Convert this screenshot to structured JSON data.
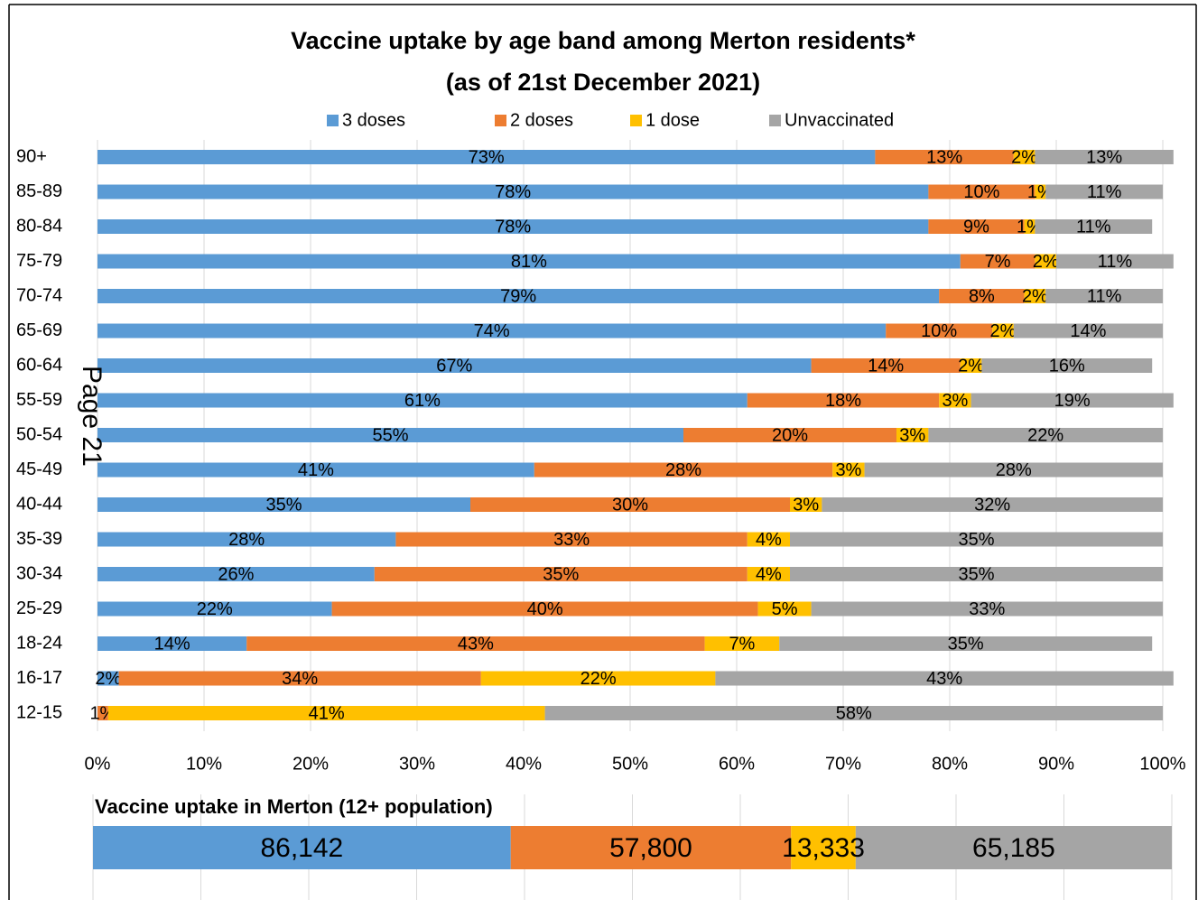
{
  "page_label": "Page 21",
  "chart_data": [
    {
      "type": "stacked-bar-horizontal",
      "title": "Vaccine uptake by age band among Merton residents*",
      "subtitle": "(as of 21st December 2021)",
      "categories": [
        "90+",
        "85-89",
        "80-84",
        "75-79",
        "70-74",
        "65-69",
        "60-64",
        "55-59",
        "50-54",
        "45-49",
        "40-44",
        "35-39",
        "30-34",
        "25-29",
        "18-24",
        "16-17",
        "12-15"
      ],
      "series": [
        {
          "name": "3 doses",
          "color": "#5b9bd5",
          "values": [
            73,
            78,
            78,
            81,
            79,
            74,
            67,
            61,
            55,
            41,
            35,
            28,
            26,
            22,
            14,
            2,
            0
          ],
          "value_labels": [
            "73%",
            "78%",
            "78%",
            "81%",
            "79%",
            "74%",
            "67%",
            "61%",
            "55%",
            "41%",
            "35%",
            "28%",
            "26%",
            "22%",
            "14%",
            "2%",
            null
          ]
        },
        {
          "name": "2 doses",
          "color": "#ed7d31",
          "values": [
            13,
            10,
            9,
            7,
            8,
            10,
            14,
            18,
            20,
            28,
            30,
            33,
            35,
            40,
            43,
            34,
            1
          ],
          "value_labels": [
            "13%",
            "10%",
            "9%",
            "7%",
            "8%",
            "10%",
            "14%",
            "18%",
            "20%",
            "28%",
            "30%",
            "33%",
            "35%",
            "40%",
            "43%",
            "34%",
            "1%"
          ]
        },
        {
          "name": "1 dose",
          "color": "#ffc000",
          "values": [
            2,
            1,
            1,
            2,
            2,
            2,
            2,
            3,
            3,
            3,
            3,
            4,
            4,
            5,
            7,
            22,
            41
          ],
          "value_labels": [
            "2%",
            "1%",
            "1%",
            "2%",
            "2%",
            "2%",
            "2%",
            "3%",
            "3%",
            "3%",
            "3%",
            "4%",
            "4%",
            "5%",
            "7%",
            "22%",
            "41%"
          ]
        },
        {
          "name": "Unvaccinated",
          "color": "#a5a5a5",
          "values": [
            13,
            11,
            11,
            11,
            11,
            14,
            16,
            19,
            22,
            28,
            32,
            35,
            35,
            33,
            35,
            43,
            58
          ],
          "value_labels": [
            "13%",
            "11%",
            "11%",
            "11%",
            "11%",
            "14%",
            "16%",
            "19%",
            "22%",
            "28%",
            "32%",
            "35%",
            "35%",
            "33%",
            "35%",
            "43%",
            "58%"
          ]
        }
      ],
      "xlim": [
        0,
        100
      ],
      "xticks": [
        {
          "value": 0,
          "label": "0%"
        },
        {
          "value": 10,
          "label": "10%"
        },
        {
          "value": 20,
          "label": "20%"
        },
        {
          "value": 30,
          "label": "30%"
        },
        {
          "value": 40,
          "label": "40%"
        },
        {
          "value": 50,
          "label": "50%"
        },
        {
          "value": 60,
          "label": "60%"
        },
        {
          "value": 70,
          "label": "70%"
        },
        {
          "value": 80,
          "label": "80%"
        },
        {
          "value": 90,
          "label": "90%"
        },
        {
          "value": 100,
          "label": "100%"
        }
      ],
      "grid": true,
      "legend": "top"
    },
    {
      "type": "stacked-bar-single",
      "title": "Vaccine uptake in Merton (12+ population)",
      "series": [
        {
          "name": "3 doses",
          "color": "#5b9bd5",
          "values": [
            86142
          ],
          "value_labels": [
            "86,142"
          ]
        },
        {
          "name": "2 doses",
          "color": "#ed7d31",
          "values": [
            57800
          ],
          "value_labels": [
            "57,800"
          ]
        },
        {
          "name": "1 dose",
          "color": "#ffc000",
          "values": [
            13333
          ],
          "value_labels": [
            "13,333"
          ]
        },
        {
          "name": "Unvaccinated",
          "color": "#a5a5a5",
          "values": [
            65185
          ],
          "value_labels": [
            "65,185"
          ]
        }
      ]
    }
  ]
}
